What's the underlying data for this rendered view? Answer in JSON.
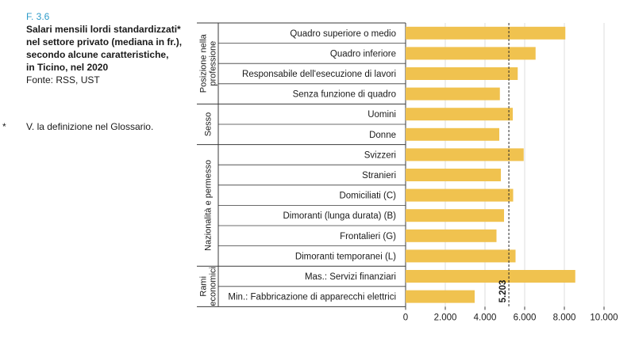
{
  "figure": {
    "id": "F. 3.6",
    "title_lines": [
      "Salari mensili lordi standardizzati*",
      "nel settore privato (mediana in fr.),",
      "secondo alcune caratteristiche,",
      "in Ticino, nel 2020"
    ],
    "source": "Fonte: RSS, UST",
    "note_marker": "*",
    "note": "V. la definizione nel Glossario."
  },
  "chart_data": {
    "type": "bar",
    "orientation": "horizontal",
    "bar_color": "#f0c24f",
    "groups": [
      {
        "name": "Posizione nella professione",
        "label_lines": [
          "Posizione nella",
          "professione"
        ],
        "categories": [
          "Quadro superiore o medio",
          "Quadro inferiore",
          "Responsabile dell'esecuzione di lavori",
          "Senza funzione di quadro"
        ],
        "values": [
          8050,
          6550,
          5650,
          4750
        ]
      },
      {
        "name": "Sesso",
        "label_lines": [
          "Sesso"
        ],
        "categories": [
          "Uomini",
          "Donne"
        ],
        "values": [
          5400,
          4720
        ]
      },
      {
        "name": "Nazionalità e permesso",
        "label_lines": [
          "Nazionalità e permesso"
        ],
        "categories": [
          "Svizzeri",
          "Stranieri",
          "Domiciliati (C)",
          "Dimoranti (lunga durata) (B)",
          "Frontalieri (G)",
          "Dimoranti temporanei (L)"
        ],
        "values": [
          5950,
          4800,
          5420,
          4960,
          4580,
          5540
        ]
      },
      {
        "name": "Rami economici",
        "label_lines": [
          "Rami",
          "economici"
        ],
        "categories": [
          "Mas.: Servizi finanziari",
          "Min.: Fabbricazione di apparecchi elettrici"
        ],
        "values": [
          8550,
          3480
        ]
      }
    ],
    "xlim": [
      0,
      10000
    ],
    "x_ticks": [
      0,
      2000,
      4000,
      6000,
      8000,
      10000
    ],
    "x_tick_labels": [
      "0",
      "2.000",
      "4.000",
      "6.000",
      "8.000",
      "10.000"
    ],
    "reference_line": {
      "value": 5203,
      "label": "5.203"
    },
    "grid": true
  }
}
